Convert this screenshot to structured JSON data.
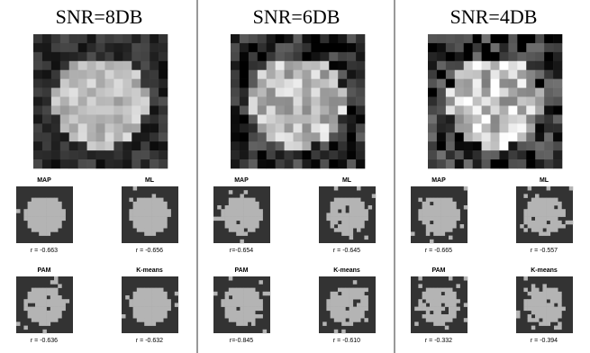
{
  "panels": [
    {
      "title": "SNR=8DB",
      "results": [
        {
          "method": "MAP",
          "r": "r = -0.663"
        },
        {
          "method": "ML",
          "r": "r = -0.656"
        },
        {
          "method": "PAM",
          "r": "r = -0.636"
        },
        {
          "method": "K-means",
          "r": "r = -0.632"
        }
      ]
    },
    {
      "title": "SNR=6DB",
      "results": [
        {
          "method": "MAP",
          "r": "r=-0.654"
        },
        {
          "method": "ML",
          "r": "r = -0.645"
        },
        {
          "method": "PAM",
          "r": "r=-0.845"
        },
        {
          "method": "K-means",
          "r": "r = -0.610"
        }
      ]
    },
    {
      "title": "SNR=4DB",
      "results": [
        {
          "method": "MAP",
          "r": "r = -0.665"
        },
        {
          "method": "ML",
          "r": "r = -0.557"
        },
        {
          "method": "PAM",
          "r": "r = -0.332"
        },
        {
          "method": "K-means",
          "r": "r = -0.394"
        }
      ]
    }
  ]
}
